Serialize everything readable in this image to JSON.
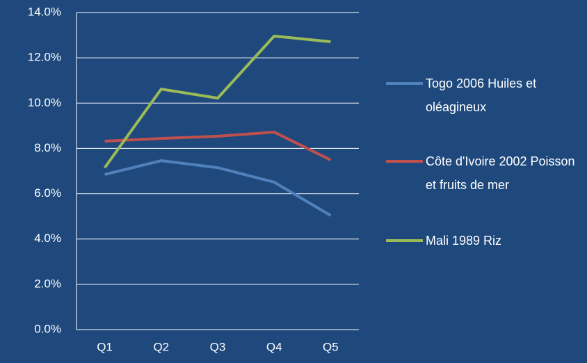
{
  "chart_data": {
    "type": "line",
    "categories": [
      "Q1",
      "Q2",
      "Q3",
      "Q4",
      "Q5"
    ],
    "series": [
      {
        "name": "Togo 2006 Huiles et oléagineux",
        "color": "#4f81bd",
        "values": [
          6.85,
          7.46,
          7.15,
          6.51,
          5.04
        ]
      },
      {
        "name": "Côte d'Ivoire 2002 Poisson et fruits de mer",
        "color": "#c0504d",
        "values": [
          8.32,
          8.44,
          8.54,
          8.72,
          7.49
        ]
      },
      {
        "name": "Mali 1989 Riz",
        "color": "#9bbb59",
        "values": [
          7.15,
          10.62,
          10.22,
          12.96,
          12.71
        ]
      }
    ],
    "ylim": [
      0,
      14
    ],
    "yticks": [
      {
        "value": 0,
        "label": "0.0%"
      },
      {
        "value": 2,
        "label": "2.0%"
      },
      {
        "value": 4,
        "label": "4.0%"
      },
      {
        "value": 6,
        "label": "6.0%"
      },
      {
        "value": 8,
        "label": "8.0%"
      },
      {
        "value": 10,
        "label": "10.0%"
      },
      {
        "value": 12,
        "label": "12.0%"
      },
      {
        "value": 14,
        "label": "14.0%"
      }
    ],
    "grid": true
  }
}
